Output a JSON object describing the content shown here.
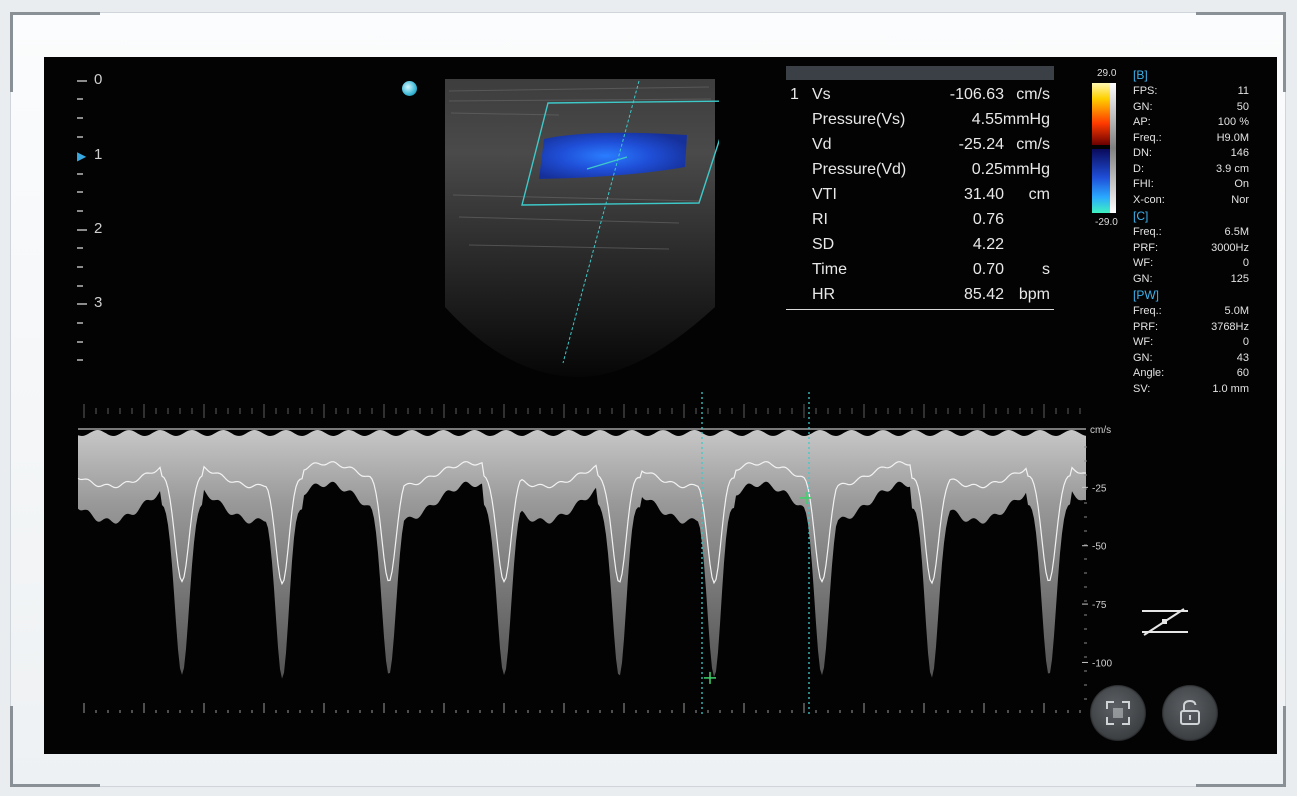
{
  "depth_scale": {
    "labels": [
      "0",
      "1",
      "2",
      "3"
    ],
    "focus_marker": "▶"
  },
  "measurements": {
    "index": "1",
    "rows": [
      {
        "label": "Vs",
        "value": "-106.63",
        "unit": "cm/s"
      },
      {
        "label": "Pressure(Vs)",
        "value": "4.55",
        "unit": "mmHg"
      },
      {
        "label": "Vd",
        "value": "-25.24",
        "unit": "cm/s"
      },
      {
        "label": "Pressure(Vd)",
        "value": "0.25",
        "unit": "mmHg"
      },
      {
        "label": "VTI",
        "value": "31.40",
        "unit": "cm"
      },
      {
        "label": "RI",
        "value": "0.76",
        "unit": ""
      },
      {
        "label": "SD",
        "value": "4.22",
        "unit": ""
      },
      {
        "label": "Time",
        "value": "0.70",
        "unit": "s"
      },
      {
        "label": "HR",
        "value": "85.42",
        "unit": "bpm"
      }
    ]
  },
  "colorbar": {
    "top": "29.0",
    "bottom": "-29.0"
  },
  "params": {
    "b": {
      "title": "[B]",
      "rows": [
        {
          "k": "FPS:",
          "v": "11"
        },
        {
          "k": "GN:",
          "v": "50"
        },
        {
          "k": "AP:",
          "v": "100 %"
        },
        {
          "k": "Freq.:",
          "v": "H9.0M"
        },
        {
          "k": "DN:",
          "v": "146"
        },
        {
          "k": "D:",
          "v": "3.9 cm"
        },
        {
          "k": "FHI:",
          "v": "On"
        },
        {
          "k": "X-con:",
          "v": "Nor"
        }
      ]
    },
    "c": {
      "title": "[C]",
      "rows": [
        {
          "k": "Freq.:",
          "v": "6.5M"
        },
        {
          "k": "PRF:",
          "v": "3000Hz"
        },
        {
          "k": "WF:",
          "v": "0"
        },
        {
          "k": "GN:",
          "v": "125"
        }
      ]
    },
    "pw": {
      "title": "[PW]",
      "rows": [
        {
          "k": "Freq.:",
          "v": "5.0M"
        },
        {
          "k": "PRF:",
          "v": "3768Hz"
        },
        {
          "k": "WF:",
          "v": "0"
        },
        {
          "k": "GN:",
          "v": "43"
        },
        {
          "k": "Angle:",
          "v": "60"
        },
        {
          "k": "SV:",
          "v": "1.0 mm"
        }
      ]
    }
  },
  "doppler_scale": {
    "unit": "cm/s",
    "ticks": [
      {
        "value": -25,
        "label": "-25"
      },
      {
        "value": -50,
        "label": "-50"
      },
      {
        "value": -75,
        "label": "-75"
      },
      {
        "value": -100,
        "label": "-100"
      }
    ],
    "range": [
      0,
      -120
    ]
  },
  "spectrum": {
    "peaks_velocity": -106.63,
    "diastolic_velocity": -25.24,
    "cycles": 9
  },
  "colors": {
    "accent": "#3db2ec",
    "caliper": "#3ec9c9",
    "cursor_mark": "#3fd36a",
    "flow_blue": "#1f4fd8"
  },
  "buttons": {
    "fullscreen": "fullscreen-icon",
    "lock": "unlock-icon"
  }
}
